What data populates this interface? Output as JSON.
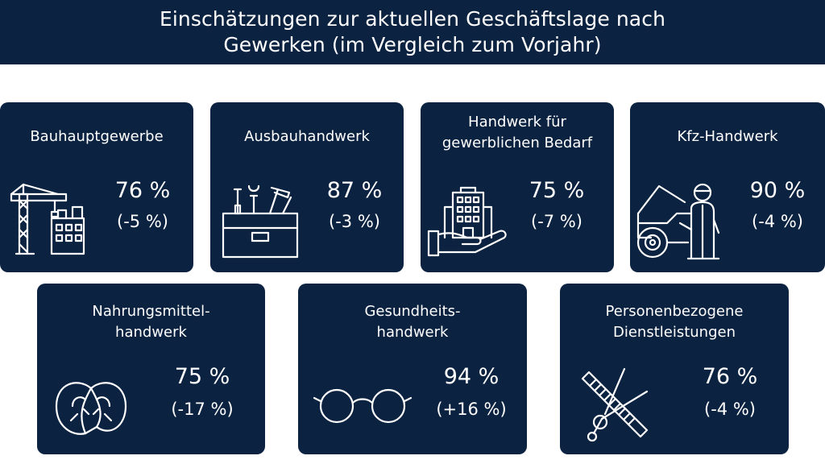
{
  "title": "Einschätzungen zur aktuellen Geschäftslage nach Gewerken (im Vergleich zum Vorjahr)",
  "colors": {
    "card_bg": "#0b2241",
    "text": "#ffffff",
    "page_bg": "#ffffff"
  },
  "cards": [
    {
      "title": "Bauhauptgewerbe",
      "value": "76 %",
      "change": "(-5 %)",
      "icon": "construction-crane-icon"
    },
    {
      "title": "Ausbauhandwerk",
      "value": "87 %",
      "change": "(-3 %)",
      "icon": "toolbox-icon"
    },
    {
      "title": "Handwerk für\ngewerblichen Bedarf",
      "value": "75 %",
      "change": "(-7 %)",
      "icon": "building-hand-icon"
    },
    {
      "title": "Kfz-Handwerk",
      "value": "90 %",
      "change": "(-4 %)",
      "icon": "car-mechanic-icon"
    },
    {
      "title": "Nahrungsmittel-\nhandwerk",
      "value": "75 %",
      "change": "(-17 %)",
      "icon": "pretzel-icon"
    },
    {
      "title": "Gesundheits-\nhandwerk",
      "value": "94 %",
      "change": "(+16 %)",
      "icon": "glasses-icon"
    },
    {
      "title": "Personenbezogene\nDienstleistungen",
      "value": "76 %",
      "change": "(-4 %)",
      "icon": "comb-scissors-icon"
    }
  ]
}
